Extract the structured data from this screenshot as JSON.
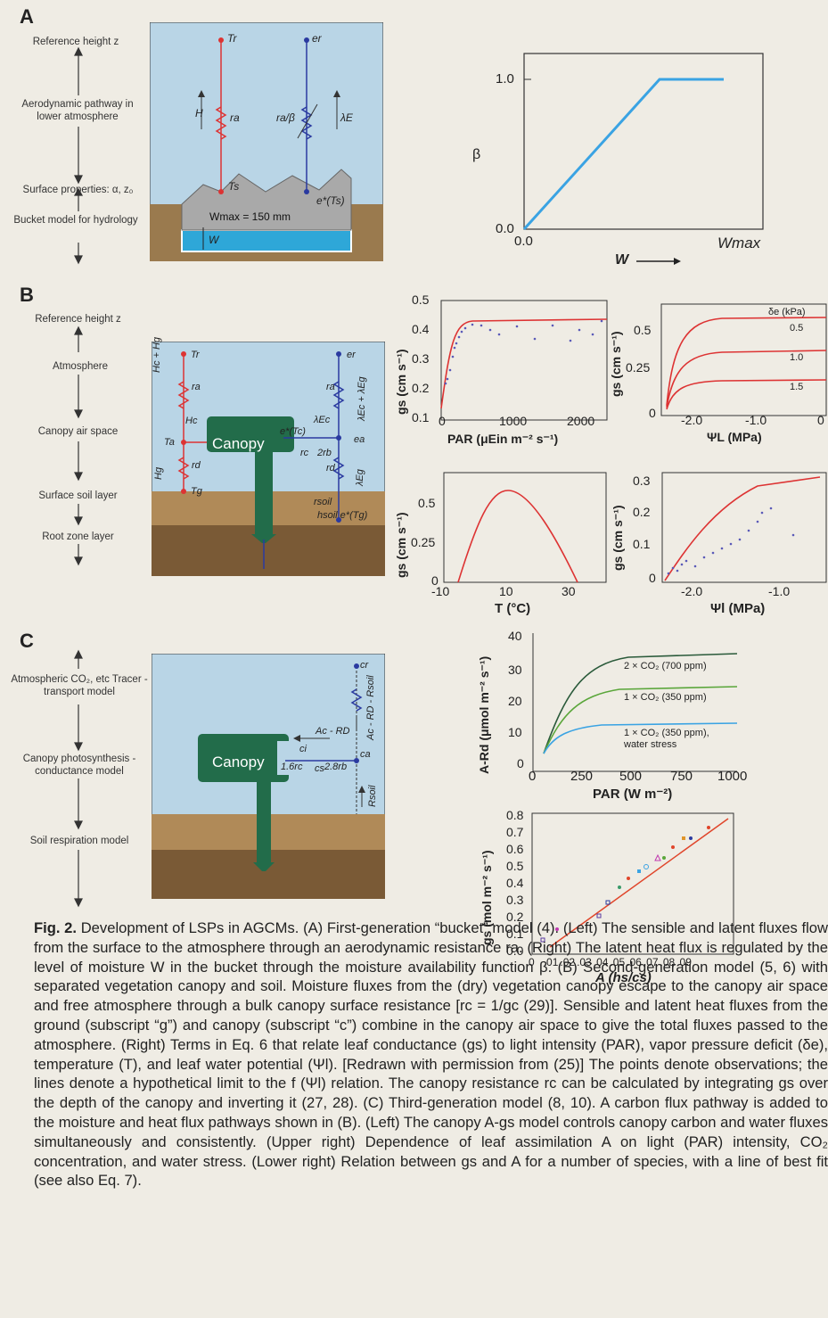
{
  "panelA": {
    "label": "A",
    "side_labels": [
      "Reference height z",
      "Aerodynamic pathway in lower atmosphere",
      "Surface properties: α, z₀",
      "Bucket model for hydrology"
    ],
    "diagram": {
      "Tr": "Tr",
      "er": "er",
      "H": "H",
      "ra": "ra",
      "ra_beta": "ra/β",
      "lambdaE": "λE",
      "Ts": "Ts",
      "es_star": "e*(Ts)",
      "Wmax": "Wmax = 150 mm",
      "W": "W"
    },
    "chart": {
      "ylabel": "β",
      "y_ticks": [
        "1.0",
        "0.0"
      ],
      "x_ticks": [
        "0.0",
        "Wmax"
      ],
      "xlabel": "W"
    }
  },
  "panelB": {
    "label": "B",
    "side_labels": [
      "Reference height z",
      "Atmosphere",
      "Canopy air space",
      "Surface soil layer",
      "Root zone layer"
    ],
    "diagram": {
      "canopy": "Canopy",
      "Tr": "Tr",
      "er": "er",
      "ra_left": "ra",
      "ra_right": "ra",
      "Hc_Hg": "Hc + Hg",
      "Hc": "Hc",
      "Ta": "Ta",
      "rd_left": "rd",
      "Hg": "Hg",
      "Tg": "Tg",
      "lEc_lEg": "λEc + λEg",
      "lEc": "λEc",
      "eTc": "e*(Tc)",
      "ea": "ea",
      "rc": "rc",
      "two_rb": "2rb",
      "rd_right": "rd",
      "lEg": "λEg",
      "rsoil": "rsoil",
      "hsoil": "hsoil e*(Tg)"
    },
    "charts": {
      "par": {
        "y_ticks": [
          "0.5",
          "0.4",
          "0.3",
          "0.2",
          "0.1"
        ],
        "x_ticks": [
          "0",
          "1000",
          "2000"
        ],
        "ylabel": "gs (cm s⁻¹)",
        "xlabel": "PAR (μEin m⁻² s⁻¹)"
      },
      "psiL": {
        "y_ticks": [
          "0.5",
          "0.25",
          "0"
        ],
        "x_ticks": [
          "-2.0",
          "-1.0",
          "0"
        ],
        "ylabel": "gs (cm s⁻¹)",
        "xlabel": "ΨL (MPa)",
        "legend_title": "δe (kPa)",
        "curve_labels": [
          "0.5",
          "1.0",
          "1.5"
        ]
      },
      "temp": {
        "y_ticks": [
          "0.5",
          "0.25",
          "0"
        ],
        "x_ticks": [
          "-10",
          "10",
          "30"
        ],
        "ylabel": "gs (cm s⁻¹)",
        "xlabel": "T (°C)"
      },
      "psil": {
        "y_ticks": [
          "0.3",
          "0.2",
          "0.1",
          "0"
        ],
        "x_ticks": [
          "-2.0",
          "-1.0"
        ],
        "ylabel": "gs (cm s⁻¹)",
        "xlabel": "Ψl (MPa)"
      }
    }
  },
  "panelC": {
    "label": "C",
    "side_labels": [
      "Atmospheric CO₂, etc Tracer - transport model",
      "Canopy photosynthesis - conductance model",
      "Soil respiration model"
    ],
    "diagram": {
      "canopy": "Canopy",
      "cr": "cr",
      "ci": "ci",
      "ca": "ca",
      "cs": "cs",
      "Ac_Rd": "Ac - RD",
      "r16": "1.6rc",
      "r28": "2.8rb",
      "right_flux": "Ac - RD - Rsoil",
      "Rsoil": "Rsoil"
    },
    "charts": {
      "co2": {
        "y_ticks": [
          "40",
          "30",
          "20",
          "10",
          "0"
        ],
        "x_ticks": [
          "0",
          "250",
          "500",
          "750",
          "1000"
        ],
        "ylabel": "A-Rd (μmol m⁻² s⁻¹)",
        "xlabel": "PAR (W m⁻²)",
        "labels": [
          "2 × CO₂ (700 ppm)",
          "1 × CO₂ (350 ppm)",
          "1 × CO₂ (350 ppm),",
          "water stress"
        ]
      },
      "gsA": {
        "y_ticks": [
          "0.8",
          "0.7",
          "0.6",
          "0.5",
          "0.4",
          "0.3",
          "0.2",
          "0.1",
          "0.0"
        ],
        "x_ticks": [
          "0",
          ".01",
          ".02",
          ".03",
          ".04",
          ".05",
          ".06",
          ".07",
          ".08",
          ".09"
        ],
        "ylabel": "gs (mol m⁻² s⁻¹)",
        "xlabel": "A (hs/cs)"
      }
    }
  },
  "caption": {
    "fig": "Fig. 2.",
    "text": "Development of LSPs in AGCMs. (A) First-generation “bucket” model (4). (Left) The sensible and latent fluxes flow from the surface to the atmosphere through an aerodynamic resistance ra. (Right) The latent heat flux is regulated by the level of moisture W in the bucket through the moisture availability function β. (B) Second-generation model (5, 6) with separated vegetation canopy and soil. Moisture fluxes from the (dry) vegetation canopy escape to the canopy air space and free atmosphere through a bulk canopy surface resistance [rc = 1/gc (29)]. Sensible and latent heat fluxes from the ground (subscript “g”) and canopy (subscript “c”) combine in the canopy air space to give the total fluxes passed to the atmosphere. (Right) Terms in Eq. 6 that relate leaf conductance (gs) to light intensity (PAR), vapor pressure deficit (δe), temperature (T), and leaf water potential (Ψl). [Redrawn with permission from (25)] The points denote observations; the lines denote a hypothetical limit to the f (Ψl) relation. The canopy resistance rc can be calculated by integrating gs over the depth of the canopy and inverting it (27, 28). (C) Third-generation model (8, 10). A carbon flux pathway is added to the moisture and heat flux pathways shown in (B). (Left) The canopy A-gs model controls canopy carbon and water fluxes simultaneously and consistently. (Upper right) Dependence of leaf assimilation A on light (PAR) intensity, CO₂ concentration, and water stress. (Lower right) Relation between gs and A for a number of species, with a line of best fit (see also Eq. 7)."
  },
  "chart_data": [
    {
      "type": "line",
      "title": "",
      "xlabel": "W",
      "ylabel": "β",
      "x": [
        0,
        0.8,
        1.2
      ],
      "y": [
        0,
        1,
        1
      ],
      "ylim": [
        0,
        1
      ]
    },
    {
      "type": "scatter",
      "xlabel": "PAR (μEin m⁻² s⁻¹)",
      "ylabel": "gs (cm s⁻¹)",
      "xlim": [
        0,
        2200
      ],
      "ylim": [
        0.1,
        0.5
      ],
      "series": [
        {
          "x": [
            0,
            50,
            100,
            150,
            200,
            300,
            500,
            800,
            1200,
            1600,
            2000,
            2200
          ],
          "y": [
            0.12,
            0.32,
            0.4,
            0.42,
            0.43,
            0.44,
            0.44,
            0.44,
            0.44,
            0.44,
            0.44,
            0.44
          ]
        }
      ]
    },
    {
      "type": "line",
      "xlabel": "ΨL (MPa)",
      "ylabel": "gs (cm s⁻¹)",
      "xlim": [
        -2.5,
        0
      ],
      "ylim": [
        0,
        0.6
      ],
      "series": [
        {
          "name": "0.5",
          "y_max": 0.58
        },
        {
          "name": "1.0",
          "y_max": 0.38
        },
        {
          "name": "1.5",
          "y_max": 0.2
        }
      ]
    },
    {
      "type": "line",
      "xlabel": "T (°C)",
      "ylabel": "gs (cm s⁻¹)",
      "x": [
        -5,
        0,
        5,
        10,
        15,
        20,
        25,
        32
      ],
      "y": [
        0,
        0.3,
        0.52,
        0.58,
        0.52,
        0.35,
        0.15,
        0
      ],
      "ylim": [
        0,
        0.65
      ]
    },
    {
      "type": "scatter",
      "xlabel": "Ψl (MPa)",
      "ylabel": "gs (cm s⁻¹)",
      "xlim": [
        -2.4,
        -0.4
      ],
      "ylim": [
        0,
        0.33
      ],
      "series": [
        {
          "x": [
            -2.3,
            -2.1,
            -1.8,
            -1.5,
            -1.2,
            -0.9,
            -0.5
          ],
          "y": [
            0.02,
            0.08,
            0.15,
            0.21,
            0.26,
            0.3,
            0.32
          ]
        }
      ]
    },
    {
      "type": "line",
      "xlabel": "PAR (W m⁻²)",
      "ylabel": "A-Rd (μmol m⁻² s⁻¹)",
      "xlim": [
        0,
        1000
      ],
      "ylim": [
        0,
        40
      ],
      "series": [
        {
          "name": "2 × CO₂ (700 ppm)",
          "y_max": 36
        },
        {
          "name": "1 × CO₂ (350 ppm)",
          "y_max": 25
        },
        {
          "name": "1 × CO₂ (350 ppm), water stress",
          "y_max": 13
        }
      ]
    },
    {
      "type": "scatter",
      "xlabel": "A (hs/cs)",
      "ylabel": "gs (mol m⁻² s⁻¹)",
      "xlim": [
        0,
        0.09
      ],
      "ylim": [
        0,
        0.8
      ],
      "series": [
        {
          "x": [
            0.01,
            0.03,
            0.04,
            0.05,
            0.06,
            0.07,
            0.08
          ],
          "y": [
            0.05,
            0.25,
            0.4,
            0.5,
            0.55,
            0.65,
            0.75
          ]
        }
      ]
    }
  ]
}
